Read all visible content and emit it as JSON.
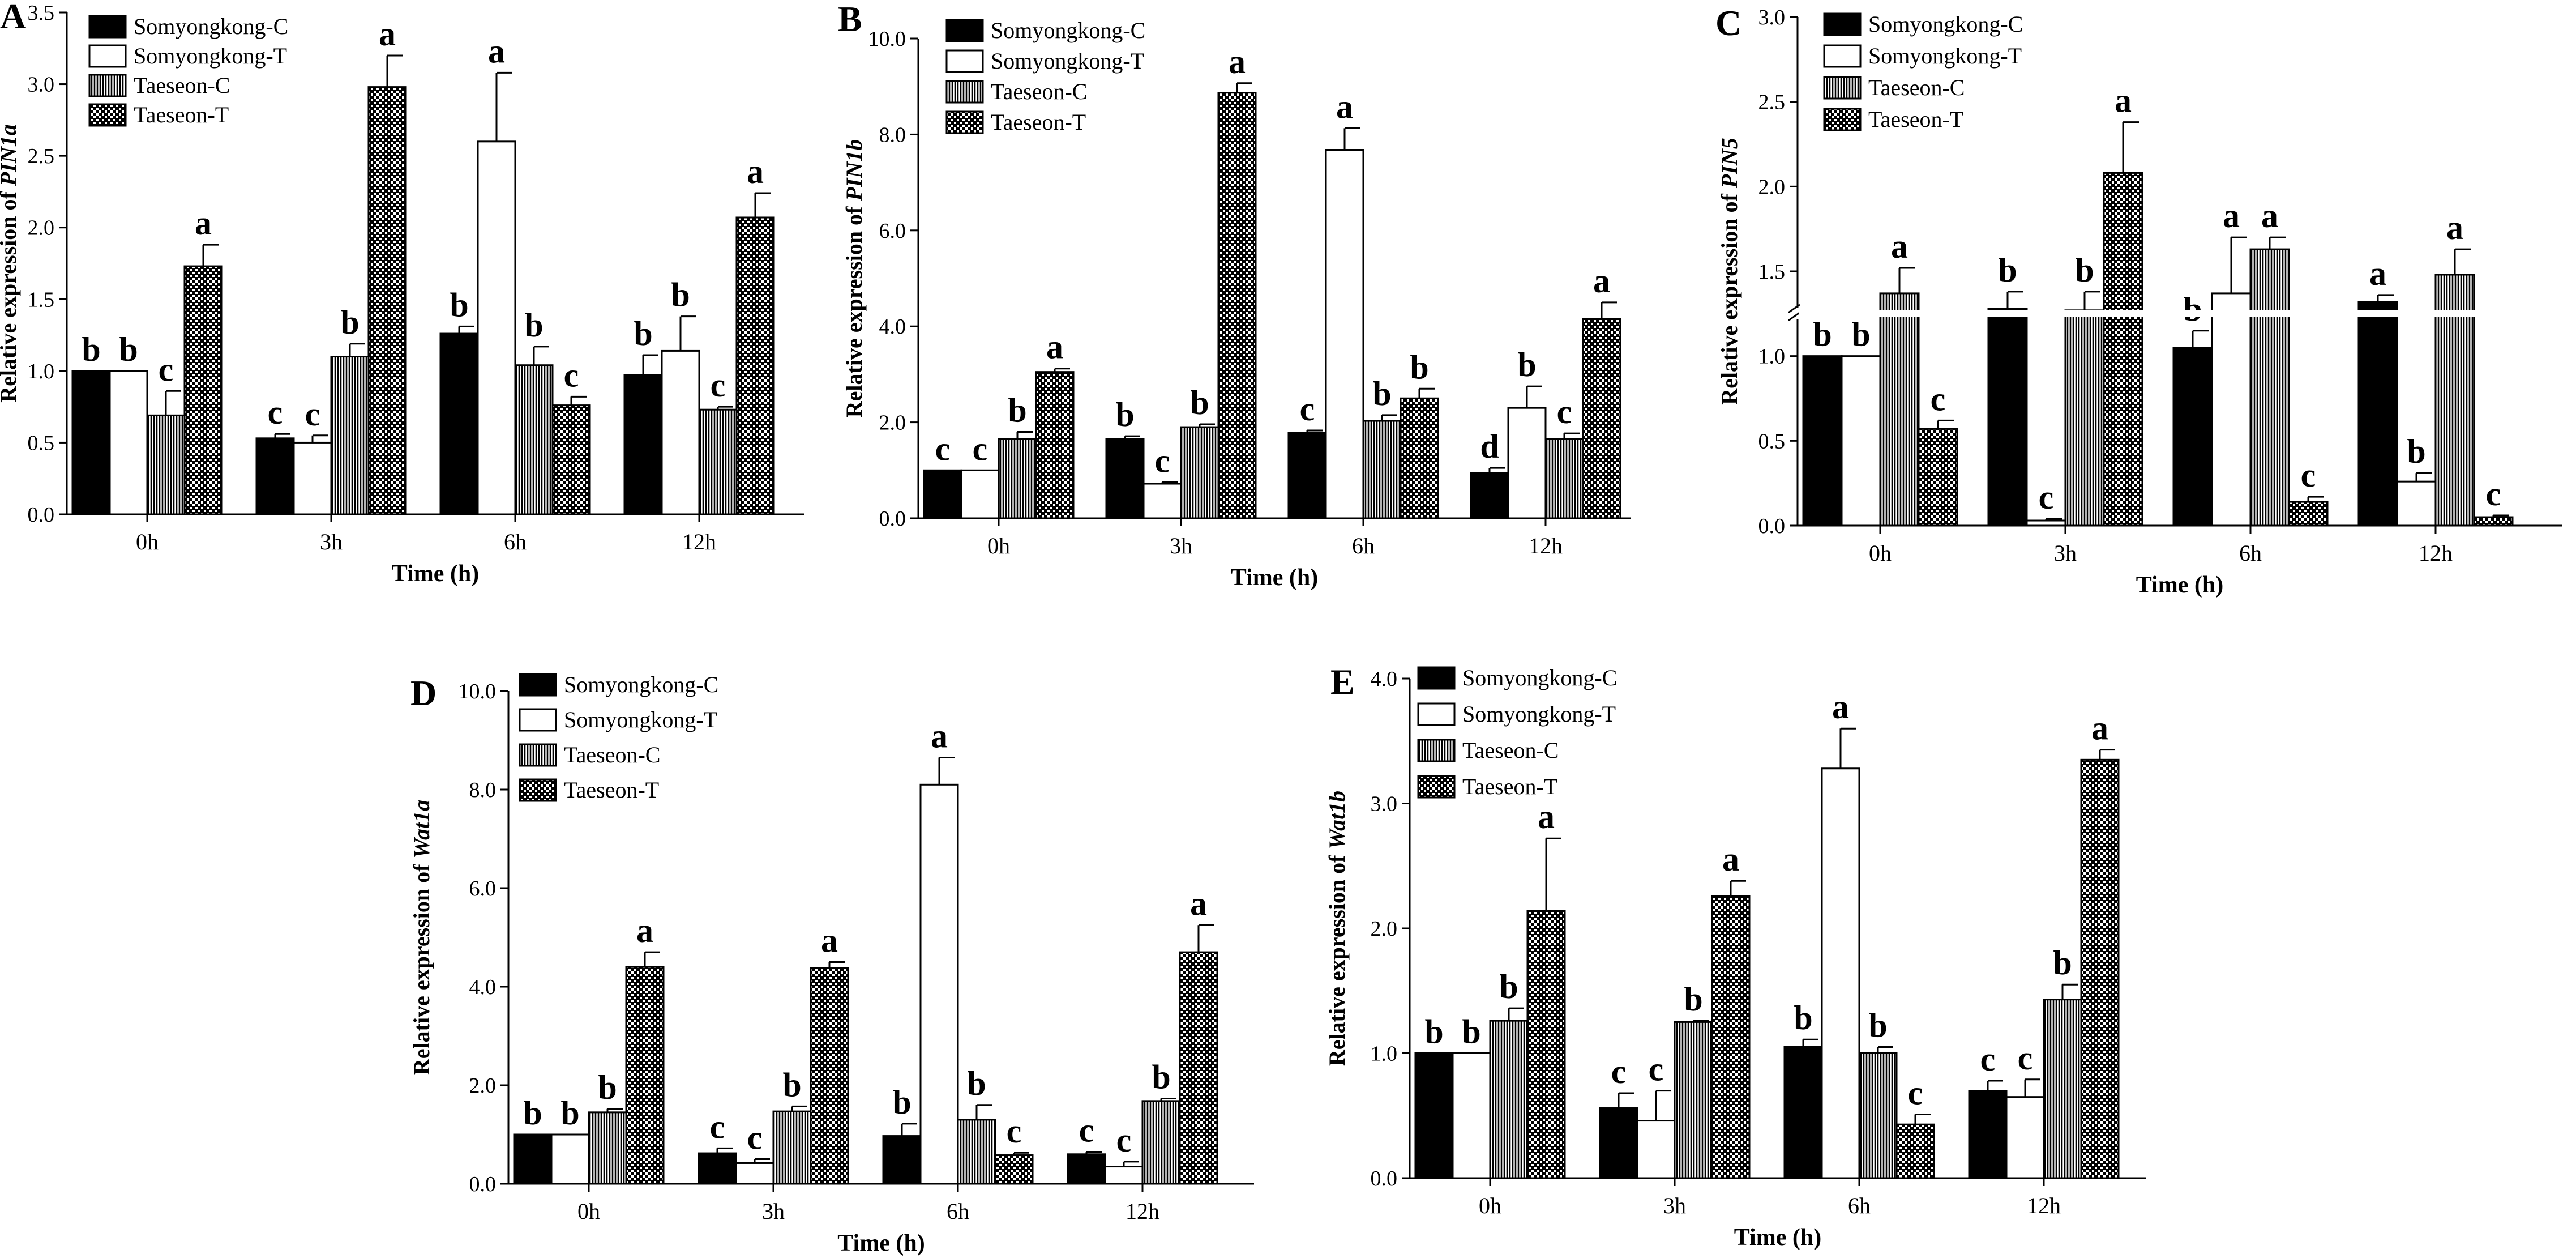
{
  "colors": {
    "C1": "#000000",
    "T1": "#ffffff",
    "C2": "#ffffff",
    "T2": "#000000",
    "stroke": "#000000"
  },
  "chart_data": [
    {
      "type": "bar",
      "panel": "A",
      "title": "",
      "xlabel": "Time (h)",
      "ylabel_prefix": "Relative expression of ",
      "ylabel_gene": "PIN1a",
      "ylim": [
        0,
        3.5
      ],
      "ticks": [
        "0.0",
        "0.5",
        "1.0",
        "1.5",
        "2.0",
        "2.5",
        "3.0",
        "3.5"
      ],
      "tick_values": [
        0,
        0.5,
        1,
        1.5,
        2,
        2.5,
        3,
        3.5
      ],
      "categories": [
        "0h",
        "3h",
        "6h",
        "12h"
      ],
      "legend": [
        "Somyongkong-C",
        "Somyongkong-T",
        "Taeseon-C",
        "Taeseon-T"
      ],
      "series": [
        {
          "name": "Somyongkong-C",
          "values": [
            1.0,
            0.53,
            1.26,
            0.97
          ],
          "errors": [
            0.0,
            0.03,
            0.05,
            0.14
          ],
          "letters": [
            "b",
            "c",
            "b",
            "b"
          ]
        },
        {
          "name": "Somyongkong-T",
          "values": [
            1.0,
            0.5,
            2.6,
            1.14
          ],
          "errors": [
            0.0,
            0.05,
            0.48,
            0.24
          ],
          "letters": [
            "b",
            "c",
            "a",
            "b"
          ]
        },
        {
          "name": "Taeseon-C",
          "values": [
            0.69,
            1.1,
            1.04,
            0.73
          ],
          "errors": [
            0.17,
            0.09,
            0.13,
            0.02
          ],
          "letters": [
            "c",
            "b",
            "b",
            "c"
          ]
        },
        {
          "name": "Taeseon-T",
          "values": [
            1.73,
            2.98,
            0.76,
            2.07
          ],
          "errors": [
            0.15,
            0.22,
            0.06,
            0.17
          ],
          "letters": [
            "a",
            "a",
            "c",
            "a"
          ]
        }
      ]
    },
    {
      "type": "bar",
      "panel": "B",
      "title": "",
      "xlabel": "Time (h)",
      "ylabel_prefix": "Relative expression of ",
      "ylabel_gene": "PIN1b",
      "ylim": [
        0,
        10
      ],
      "ticks": [
        "0.0",
        "2.0",
        "4.0",
        "6.0",
        "8.0",
        "10.0"
      ],
      "tick_values": [
        0,
        2,
        4,
        6,
        8,
        10
      ],
      "categories": [
        "0h",
        "3h",
        "6h",
        "12h"
      ],
      "legend": [
        "Somyongkong-C",
        "Somyongkong-T",
        "Taeseon-C",
        "Taeseon-T"
      ],
      "series": [
        {
          "name": "Somyongkong-C",
          "values": [
            1.0,
            1.65,
            1.78,
            0.95
          ],
          "errors": [
            0.0,
            0.06,
            0.05,
            0.1
          ],
          "letters": [
            "c",
            "b",
            "c",
            "d"
          ]
        },
        {
          "name": "Somyongkong-T",
          "values": [
            1.0,
            0.72,
            7.68,
            2.3
          ],
          "errors": [
            0.0,
            0.03,
            0.45,
            0.45
          ],
          "letters": [
            "c",
            "c",
            "a",
            "b"
          ]
        },
        {
          "name": "Taeseon-C",
          "values": [
            1.65,
            1.9,
            2.03,
            1.65
          ],
          "errors": [
            0.15,
            0.06,
            0.12,
            0.12
          ],
          "letters": [
            "b",
            "b",
            "b",
            "c"
          ]
        },
        {
          "name": "Taeseon-T",
          "values": [
            3.05,
            8.87,
            2.5,
            4.15
          ],
          "errors": [
            0.07,
            0.2,
            0.2,
            0.35
          ],
          "letters": [
            "a",
            "a",
            "b",
            "a"
          ]
        }
      ]
    },
    {
      "type": "bar",
      "panel": "C",
      "title": "",
      "xlabel": "Time (h)",
      "ylabel_prefix": "Relative expression of ",
      "ylabel_gene": "PIN5",
      "axis_break": [
        1.2,
        1.3
      ],
      "ylim": [
        0,
        3.0
      ],
      "ticks": [
        "0.0",
        "0.5",
        "1.0",
        "1.5",
        "2.0",
        "2.5",
        "3.0"
      ],
      "tick_values": [
        0,
        0.5,
        1,
        1.5,
        2,
        2.5,
        3
      ],
      "categories": [
        "0h",
        "3h",
        "6h",
        "12h"
      ],
      "legend": [
        "Somyongkong-C",
        "Somyongkong-T",
        "Taeseon-C",
        "Taeseon-T"
      ],
      "series": [
        {
          "name": "Somyongkong-C",
          "values": [
            1.0,
            1.28,
            1.05,
            1.32
          ],
          "errors": [
            0.0,
            0.1,
            0.1,
            0.04
          ],
          "letters": [
            "b",
            "b",
            "b",
            "a"
          ]
        },
        {
          "name": "Somyongkong-T",
          "values": [
            1.0,
            0.03,
            1.37,
            0.26
          ],
          "errors": [
            0.0,
            0.01,
            0.33,
            0.05
          ],
          "letters": [
            "b",
            "c",
            "a",
            "b"
          ]
        },
        {
          "name": "Taeseon-C",
          "values": [
            1.37,
            1.27,
            1.63,
            1.48
          ],
          "errors": [
            0.15,
            0.11,
            0.07,
            0.15
          ],
          "letters": [
            "a",
            "b",
            "a",
            "a"
          ]
        },
        {
          "name": "Taeseon-T",
          "values": [
            0.57,
            2.08,
            0.14,
            0.05
          ],
          "errors": [
            0.05,
            0.3,
            0.03,
            0.01
          ],
          "letters": [
            "c",
            "a",
            "c",
            "c"
          ]
        }
      ]
    },
    {
      "type": "bar",
      "panel": "D",
      "title": "",
      "xlabel": "Time (h)",
      "ylabel_prefix": "Relative expression of ",
      "ylabel_gene": "Wat1a",
      "ylim": [
        0,
        10
      ],
      "ticks": [
        "0.0",
        "2.0",
        "4.0",
        "6.0",
        "8.0",
        "10.0"
      ],
      "tick_values": [
        0,
        2,
        4,
        6,
        8,
        10
      ],
      "categories": [
        "0h",
        "3h",
        "6h",
        "12h"
      ],
      "legend": [
        "Somyongkong-C",
        "Somyongkong-T",
        "Taeseon-C",
        "Taeseon-T"
      ],
      "series": [
        {
          "name": "Somyongkong-C",
          "values": [
            1.0,
            0.62,
            0.97,
            0.6
          ],
          "errors": [
            0.0,
            0.1,
            0.25,
            0.05
          ],
          "letters": [
            "b",
            "c",
            "b",
            "c"
          ]
        },
        {
          "name": "Somyongkong-T",
          "values": [
            1.0,
            0.42,
            8.1,
            0.35
          ],
          "errors": [
            0.0,
            0.08,
            0.55,
            0.1
          ],
          "letters": [
            "b",
            "c",
            "a",
            "c"
          ]
        },
        {
          "name": "Taeseon-C",
          "values": [
            1.45,
            1.47,
            1.3,
            1.68
          ],
          "errors": [
            0.07,
            0.1,
            0.3,
            0.05
          ],
          "letters": [
            "b",
            "b",
            "b",
            "b"
          ]
        },
        {
          "name": "Taeseon-T",
          "values": [
            4.4,
            4.38,
            0.58,
            4.7
          ],
          "errors": [
            0.3,
            0.12,
            0.05,
            0.55
          ],
          "letters": [
            "a",
            "a",
            "c",
            "a"
          ]
        }
      ]
    },
    {
      "type": "bar",
      "panel": "E",
      "title": "",
      "xlabel": "Time (h)",
      "ylabel_prefix": "Relative expression of ",
      "ylabel_gene": "Wat1b",
      "ylim": [
        0,
        4.0
      ],
      "ticks": [
        "0.0",
        "1.0",
        "2.0",
        "3.0",
        "4.0"
      ],
      "tick_values": [
        0,
        1,
        2,
        3,
        4
      ],
      "categories": [
        "0h",
        "3h",
        "6h",
        "12h"
      ],
      "legend": [
        "Somyongkong-C",
        "Somyongkong-T",
        "Taeseon-C",
        "Taeseon-T"
      ],
      "series": [
        {
          "name": "Somyongkong-C",
          "values": [
            1.0,
            0.56,
            1.05,
            0.7
          ],
          "errors": [
            0.0,
            0.12,
            0.06,
            0.08
          ],
          "letters": [
            "b",
            "c",
            "b",
            "c"
          ]
        },
        {
          "name": "Somyongkong-T",
          "values": [
            1.0,
            0.46,
            3.28,
            0.65
          ],
          "errors": [
            0.0,
            0.24,
            0.32,
            0.14
          ],
          "letters": [
            "b",
            "c",
            "a",
            "c"
          ]
        },
        {
          "name": "Taeseon-C",
          "values": [
            1.26,
            1.25,
            1.0,
            1.43
          ],
          "errors": [
            0.1,
            0.01,
            0.05,
            0.12
          ],
          "letters": [
            "b",
            "b",
            "b",
            "b"
          ]
        },
        {
          "name": "Taeseon-T",
          "values": [
            2.14,
            2.26,
            0.43,
            3.35
          ],
          "errors": [
            0.58,
            0.12,
            0.08,
            0.08
          ],
          "letters": [
            "a",
            "a",
            "c",
            "a"
          ]
        }
      ]
    }
  ]
}
